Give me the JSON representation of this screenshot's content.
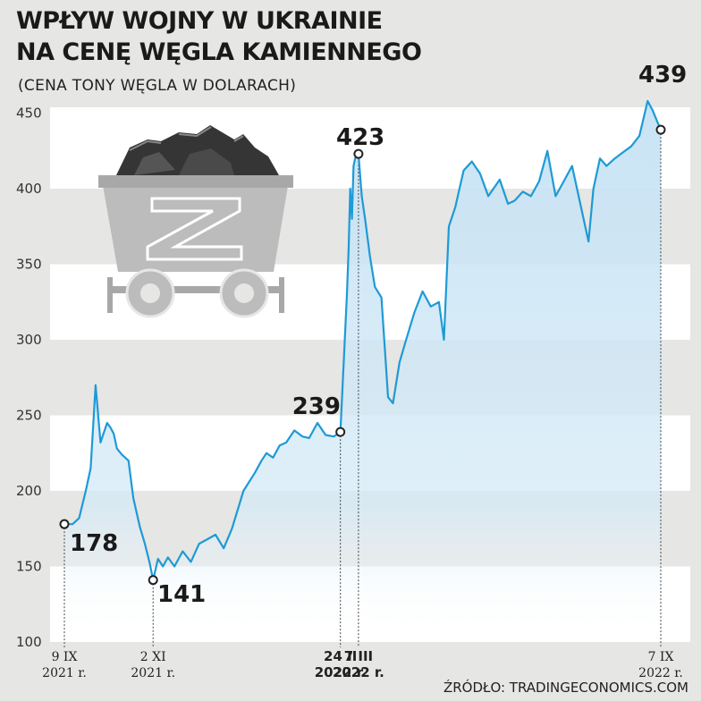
{
  "title_line1": "WPŁYW WOJNY W UKRAINIE",
  "title_line2": "NA CENĘ WĘGLA KAMIENNEGO",
  "subtitle": "(CENA TONY WĘGLA W DOLARACH)",
  "source": "ŹRÓDŁO: TRADINGECONOMICS.COM",
  "colors": {
    "line": "#1e9ad6",
    "fill": "#c9e4f5",
    "band_white": "#ffffff",
    "band_grey": "#e6e6e4",
    "cart": "#bdbdbd",
    "coal": "#333333"
  },
  "icon": "coal-mine-cart-icon",
  "chart_data": {
    "type": "area",
    "title": "WPŁYW WOJNY W UKRAINIE NA CENĘ WĘGLA KAMIENNEGO",
    "subtitle": "(CENA TONY WĘGLA W DOLARACH)",
    "ylim": [
      100,
      460
    ],
    "yticks": [
      100,
      150,
      200,
      250,
      300,
      350,
      400,
      450
    ],
    "xlim": [
      "2021-09-09",
      "2022-09-12"
    ],
    "grid": true,
    "series": [
      {
        "x": [
          "2021-09-09",
          "2021-09-14",
          "2021-09-18",
          "2021-09-22",
          "2021-09-25",
          "2021-09-28",
          "2021-10-01",
          "2021-10-05",
          "2021-10-07",
          "2021-10-09",
          "2021-10-11",
          "2021-10-14",
          "2021-10-18",
          "2021-10-21",
          "2021-10-25",
          "2021-10-28",
          "2021-10-31",
          "2021-11-02",
          "2021-11-05",
          "2021-11-08",
          "2021-11-11",
          "2021-11-15",
          "2021-11-20",
          "2021-11-25",
          "2021-11-30",
          "2021-12-05",
          "2021-12-10",
          "2021-12-15",
          "2021-12-20",
          "2021-12-27",
          "2022-01-03",
          "2022-01-07",
          "2022-01-10",
          "2022-01-14",
          "2022-01-18",
          "2022-01-22",
          "2022-01-27",
          "2022-02-01",
          "2022-02-05",
          "2022-02-10",
          "2022-02-15",
          "2022-02-20",
          "2022-02-24",
          "2022-02-26",
          "2022-02-28",
          "2022-03-01",
          "2022-03-02",
          "2022-03-03",
          "2022-03-04",
          "2022-03-05",
          "2022-03-07",
          "2022-03-09",
          "2022-03-11",
          "2022-03-14",
          "2022-03-17",
          "2022-03-21",
          "2022-03-25",
          "2022-03-28",
          "2022-04-01",
          "2022-04-05",
          "2022-04-10",
          "2022-04-15",
          "2022-04-20",
          "2022-04-25",
          "2022-04-28",
          "2022-05-01",
          "2022-05-05",
          "2022-05-10",
          "2022-05-15",
          "2022-05-20",
          "2022-05-25",
          "2022-06-01",
          "2022-06-06",
          "2022-06-10",
          "2022-06-15",
          "2022-06-20",
          "2022-06-25",
          "2022-06-30",
          "2022-07-05",
          "2022-07-10",
          "2022-07-15",
          "2022-07-20",
          "2022-07-25",
          "2022-07-28",
          "2022-08-01",
          "2022-08-05",
          "2022-08-10",
          "2022-08-15",
          "2022-08-20",
          "2022-08-25",
          "2022-08-30",
          "2022-09-02",
          "2022-09-05",
          "2022-09-07"
        ],
        "y": [
          178,
          178,
          182,
          200,
          215,
          270,
          232,
          245,
          242,
          238,
          228,
          224,
          220,
          195,
          176,
          165,
          152,
          141,
          155,
          150,
          156,
          150,
          160,
          153,
          165,
          168,
          171,
          162,
          175,
          200,
          212,
          220,
          225,
          222,
          230,
          232,
          240,
          236,
          235,
          245,
          237,
          236,
          239,
          285,
          330,
          360,
          400,
          380,
          415,
          420,
          423,
          395,
          380,
          355,
          335,
          328,
          262,
          258,
          285,
          300,
          318,
          332,
          322,
          325,
          300,
          375,
          388,
          412,
          418,
          410,
          395,
          406,
          390,
          392,
          398,
          395,
          405,
          425,
          395,
          405,
          415,
          390,
          365,
          400,
          420,
          415,
          420,
          424,
          428,
          435,
          458,
          452,
          444,
          439
        ]
      }
    ],
    "annotations": [
      {
        "x": "2021-09-09",
        "y": 178,
        "label": "178"
      },
      {
        "x": "2021-11-02",
        "y": 141,
        "label": "141"
      },
      {
        "x": "2022-02-24",
        "y": 239,
        "label": "239"
      },
      {
        "x": "2022-03-07",
        "y": 423,
        "label": "423"
      },
      {
        "x": "2022-09-07",
        "y": 439,
        "label": "439"
      }
    ],
    "xticks": [
      {
        "x": "2021-09-09",
        "line1": "9 IX",
        "line2": "2021 r.",
        "bold": false
      },
      {
        "x": "2021-11-02",
        "line1": "2 XI",
        "line2": "2021 r.",
        "bold": false
      },
      {
        "x": "2022-02-24",
        "line1": "24 II",
        "line2": "2022 r.",
        "bold": true
      },
      {
        "x": "2022-03-07",
        "line1": "7 III",
        "line2": "2022 r.",
        "bold": true
      },
      {
        "x": "2022-09-07",
        "line1": "7 IX",
        "line2": "2022 r.",
        "bold": false
      }
    ]
  }
}
